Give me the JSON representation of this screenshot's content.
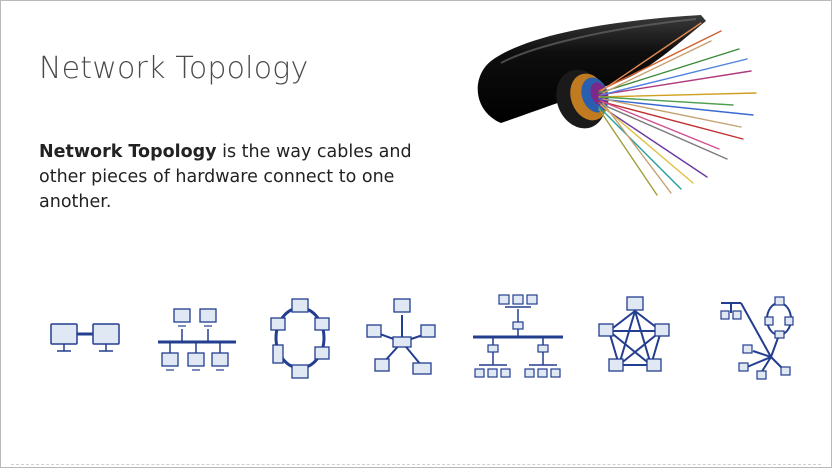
{
  "slide": {
    "title": "Network Topology",
    "description_bold": "Network Topology",
    "description_rest": " is the way cables and other pieces of hardware connect to one another."
  },
  "colors": {
    "diagram_blue": "#233d8f",
    "monitor_fill": "#dfe8f3",
    "cable_black": "#111111"
  },
  "illustrations": [
    "fiber-optic-cable-image",
    "point-to-point-topology-icon",
    "bus-topology-icon",
    "ring-topology-icon",
    "star-topology-icon",
    "tree-topology-icon",
    "mesh-topology-icon",
    "hybrid-topology-icon"
  ]
}
